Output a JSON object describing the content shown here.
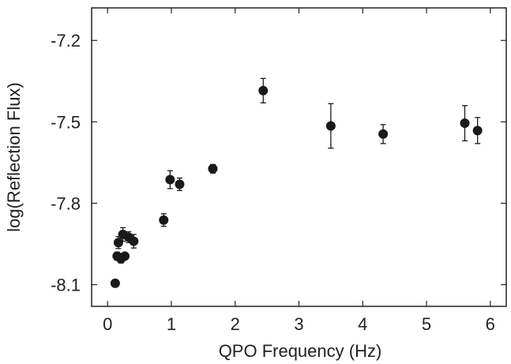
{
  "chart_data": {
    "type": "scatter",
    "title": "",
    "xlabel": "QPO Frequency (Hz)",
    "ylabel": "log(Reflection Flux)",
    "xlim": [
      -0.25,
      6.25
    ],
    "ylim": [
      -8.18,
      -7.08
    ],
    "xticks": [
      0,
      1,
      2,
      3,
      4,
      5,
      6
    ],
    "xtick_labels": [
      "0",
      "1",
      "2",
      "3",
      "4",
      "5",
      "6"
    ],
    "yticks": [
      -7.2,
      -7.5,
      -7.8,
      -8.1
    ],
    "ytick_labels": [
      "-7.2",
      "-7.5",
      "-7.8",
      "-8.1"
    ],
    "grid": false,
    "legend": "none",
    "marker_color": "#1a1a1a",
    "series": [
      {
        "points": [
          {
            "x": 0.12,
            "y": -8.095,
            "err": 0.013
          },
          {
            "x": 0.15,
            "y": -7.995,
            "err": 0.015
          },
          {
            "x": 0.17,
            "y": -7.945,
            "err": 0.022
          },
          {
            "x": 0.21,
            "y": -8.005,
            "err": 0.015
          },
          {
            "x": 0.24,
            "y": -7.915,
            "err": 0.025
          },
          {
            "x": 0.27,
            "y": -7.995,
            "err": 0.012
          },
          {
            "x": 0.33,
            "y": -7.925,
            "err": 0.02
          },
          {
            "x": 0.41,
            "y": -7.94,
            "err": 0.025
          },
          {
            "x": 0.88,
            "y": -7.862,
            "err": 0.023
          },
          {
            "x": 0.98,
            "y": -7.713,
            "err": 0.033
          },
          {
            "x": 1.13,
            "y": -7.73,
            "err": 0.023
          },
          {
            "x": 1.65,
            "y": -7.673,
            "err": 0.016
          },
          {
            "x": 2.44,
            "y": -7.385,
            "err": 0.045
          },
          {
            "x": 3.5,
            "y": -7.515,
            "err": 0.082
          },
          {
            "x": 4.32,
            "y": -7.545,
            "err": 0.035
          },
          {
            "x": 5.6,
            "y": -7.505,
            "err": 0.065
          },
          {
            "x": 5.8,
            "y": -7.532,
            "err": 0.048
          }
        ]
      }
    ]
  }
}
